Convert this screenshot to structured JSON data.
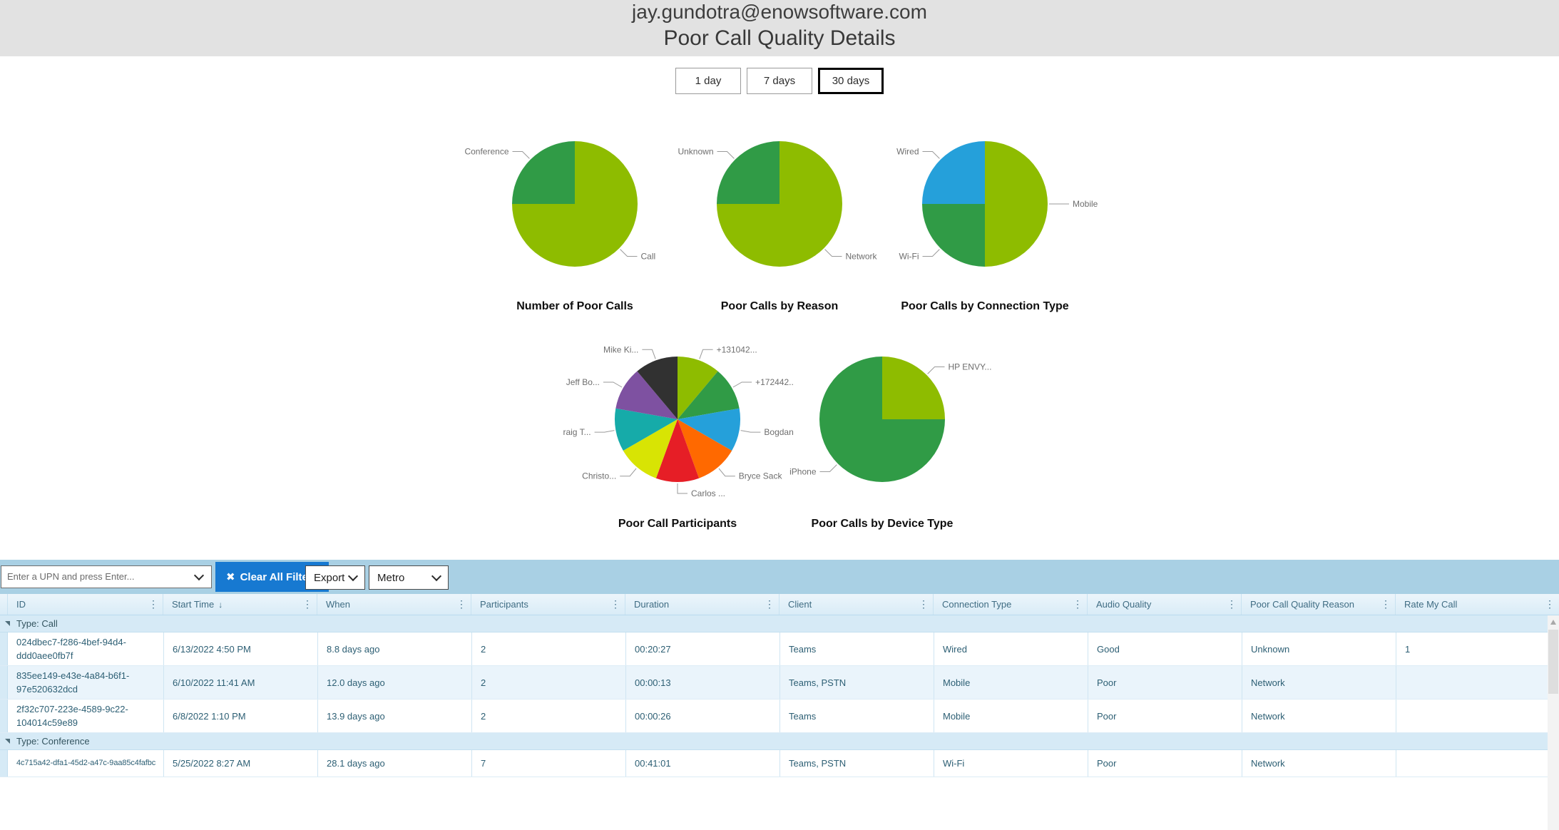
{
  "header": {
    "email": "jay.gundotra@enowsoftware.com",
    "title": "Poor Call Quality Details"
  },
  "time_range": {
    "options": [
      "1 day",
      "7 days",
      "30 days"
    ],
    "selected": "30 days"
  },
  "chart_data": [
    {
      "type": "pie",
      "title": "Number of Poor Calls",
      "legend_position": "none",
      "slices": [
        {
          "label": "Call",
          "value": 3,
          "color": "#8ebc00"
        },
        {
          "label": "Conference",
          "value": 1,
          "color": "#309b46"
        }
      ]
    },
    {
      "type": "pie",
      "title": "Poor Calls by Reason",
      "legend_position": "none",
      "slices": [
        {
          "label": "Network",
          "value": 3,
          "color": "#8ebc00"
        },
        {
          "label": "Unknown",
          "value": 1,
          "color": "#309b46"
        }
      ]
    },
    {
      "type": "pie",
      "title": "Poor Calls by Connection Type",
      "legend_position": "none",
      "slices": [
        {
          "label": "Mobile",
          "value": 2,
          "color": "#8ebc00"
        },
        {
          "label": "Wi-Fi",
          "value": 1,
          "color": "#309b46"
        },
        {
          "label": "Wired",
          "value": 1,
          "color": "#25a0da"
        }
      ]
    },
    {
      "type": "pie",
      "title": "Poor Call Participants",
      "legend_position": "none",
      "slices": [
        {
          "label": "+131042...",
          "value": 1,
          "color": "#8ebc00"
        },
        {
          "label": "+172442..",
          "value": 1,
          "color": "#309b46"
        },
        {
          "label": "Bogdan",
          "value": 1,
          "color": "#25a0da"
        },
        {
          "label": "Bryce Sack",
          "value": 1,
          "color": "#ff6900"
        },
        {
          "label": "Carlos ...",
          "value": 1,
          "color": "#e61e26"
        },
        {
          "label": "Christo...",
          "value": 1,
          "color": "#d8e404"
        },
        {
          "label": "raig T...",
          "value": 1,
          "color": "#16aba9"
        },
        {
          "label": "Jeff Bo...",
          "value": 1,
          "color": "#7e51a1"
        },
        {
          "label": "Mike Ki...",
          "value": 1,
          "color": "#313131"
        }
      ]
    },
    {
      "type": "pie",
      "title": "Poor Calls by Device Type",
      "legend_position": "none",
      "slices": [
        {
          "label": "HP ENVY...",
          "value": 1,
          "color": "#8ebc00"
        },
        {
          "label": "iPhone",
          "value": 3,
          "color": "#309b46"
        }
      ]
    }
  ],
  "toolbar": {
    "upn_placeholder": "Enter a UPN and press Enter...",
    "clear_filters": "Clear All Filters",
    "export": "Export",
    "theme": "Metro"
  },
  "icons": {
    "clear_filters_icon": "✖",
    "sort_desc_icon": "↓",
    "column_menu_icon": "⋮"
  },
  "table": {
    "columns": [
      {
        "label": "ID"
      },
      {
        "label": "Start Time",
        "sorted": "desc"
      },
      {
        "label": "When"
      },
      {
        "label": "Participants"
      },
      {
        "label": "Duration"
      },
      {
        "label": "Client"
      },
      {
        "label": "Connection Type"
      },
      {
        "label": "Audio Quality"
      },
      {
        "label": "Poor Call Quality Reason"
      },
      {
        "label": "Rate My Call"
      }
    ],
    "groups": [
      {
        "label": "Type: Call",
        "rows": [
          {
            "id": "024dbec7-f286-4bef-94d4-ddd0aee0fb7f",
            "start_time": "6/13/2022 4:50 PM",
            "when": "8.8 days ago",
            "participants": "2",
            "duration": "00:20:27",
            "client": "Teams",
            "connection_type": "Wired",
            "audio_quality": "Good",
            "poor_call_quality_reason": "Unknown",
            "rate_my_call": "1"
          },
          {
            "id": "835ee149-e43e-4a84-b6f1-97e520632dcd",
            "start_time": "6/10/2022 11:41 AM",
            "when": "12.0 days ago",
            "participants": "2",
            "duration": "00:00:13",
            "client": "Teams, PSTN",
            "connection_type": "Mobile",
            "audio_quality": "Poor",
            "poor_call_quality_reason": "Network",
            "rate_my_call": ""
          },
          {
            "id": "2f32c707-223e-4589-9c22-104014c59e89",
            "start_time": "6/8/2022 1:10 PM",
            "when": "13.9 days ago",
            "participants": "2",
            "duration": "00:00:26",
            "client": "Teams",
            "connection_type": "Mobile",
            "audio_quality": "Poor",
            "poor_call_quality_reason": "Network",
            "rate_my_call": ""
          }
        ]
      },
      {
        "label": "Type: Conference",
        "rows": [
          {
            "id": "4c715a42-dfa1-45d2-a47c-9aa85c4fafbc",
            "id_nowrap": true,
            "start_time": "5/25/2022 8:27 AM",
            "when": "28.1 days ago",
            "participants": "7",
            "duration": "00:41:01",
            "client": "Teams, PSTN",
            "connection_type": "Wi-Fi",
            "audio_quality": "Poor",
            "poor_call_quality_reason": "Network",
            "rate_my_call": ""
          }
        ]
      }
    ]
  }
}
